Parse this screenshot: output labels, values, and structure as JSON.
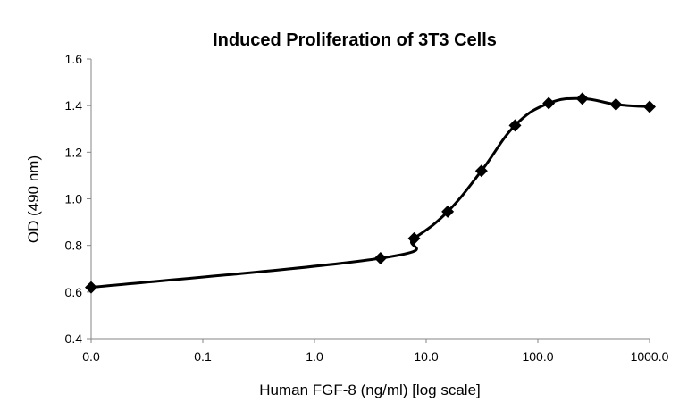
{
  "chart_data": {
    "type": "line",
    "title": "Induced Proliferation of 3T3 Cells",
    "xlabel": "Human FGF-8 (ng/ml) [log scale]",
    "ylabel": "OD (490 nm)",
    "x_scale": "log",
    "x_tick_labels": [
      "0.0",
      "0.1",
      "1.0",
      "10.0",
      "100.0",
      "1000.0"
    ],
    "y_tick_labels": [
      "0.4",
      "0.6",
      "0.8",
      "1.0",
      "1.2",
      "1.4",
      "1.6"
    ],
    "ylim": [
      0.4,
      1.6
    ],
    "grid": false,
    "legend": "none",
    "marker": "diamond",
    "line_color": "#000000",
    "series": [
      {
        "x": [
          0.0,
          3.9,
          7.8,
          15.6,
          31.25,
          62.5,
          125,
          250,
          500,
          1000
        ],
        "y": [
          0.62,
          0.745,
          0.83,
          0.945,
          1.12,
          1.315,
          1.41,
          1.43,
          1.405,
          1.395
        ]
      }
    ]
  }
}
